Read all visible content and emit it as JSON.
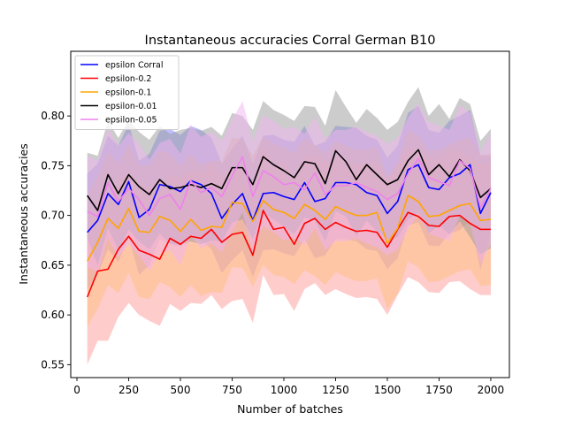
{
  "chart_data": {
    "type": "line",
    "title": "Instantaneous accuracies Corral German B10",
    "xlabel": "Number of batches",
    "ylabel": "Instantaneous accuracies",
    "xlim": [
      -30,
      2090
    ],
    "ylim": [
      0.537,
      0.865
    ],
    "xticks": [
      0,
      250,
      500,
      750,
      1000,
      1250,
      1500,
      1750,
      2000
    ],
    "yticks": [
      0.55,
      0.6,
      0.65,
      0.7,
      0.75,
      0.8
    ],
    "xtick_labels": [
      "0",
      "250",
      "500",
      "750",
      "1000",
      "1250",
      "1500",
      "1750",
      "2000"
    ],
    "ytick_labels": [
      "0.55",
      "0.60",
      "0.65",
      "0.70",
      "0.75",
      "0.80"
    ],
    "grid": false,
    "legend_position": "top-left",
    "x": [
      50,
      100,
      150,
      200,
      250,
      300,
      350,
      400,
      450,
      500,
      550,
      600,
      650,
      700,
      750,
      800,
      850,
      900,
      950,
      1000,
      1050,
      1100,
      1150,
      1200,
      1250,
      1300,
      1350,
      1400,
      1450,
      1500,
      1550,
      1600,
      1650,
      1700,
      1750,
      1800,
      1850,
      1900,
      1950,
      2000
    ],
    "series": [
      {
        "name": "epsilon Corral",
        "color": "#0000ff",
        "band_color": "#8080ff",
        "values": [
          0.683,
          0.695,
          0.722,
          0.711,
          0.734,
          0.698,
          0.706,
          0.731,
          0.729,
          0.724,
          0.735,
          0.731,
          0.722,
          0.697,
          0.711,
          0.722,
          0.695,
          0.722,
          0.723,
          0.719,
          0.716,
          0.733,
          0.714,
          0.717,
          0.733,
          0.733,
          0.731,
          0.723,
          0.72,
          0.702,
          0.714,
          0.746,
          0.751,
          0.728,
          0.726,
          0.738,
          0.742,
          0.751,
          0.702,
          0.723
        ],
        "upper": [
          0.742,
          0.752,
          0.78,
          0.77,
          0.792,
          0.755,
          0.762,
          0.785,
          0.787,
          0.781,
          0.79,
          0.786,
          0.778,
          0.752,
          0.767,
          0.78,
          0.752,
          0.78,
          0.781,
          0.776,
          0.774,
          0.79,
          0.77,
          0.774,
          0.79,
          0.789,
          0.788,
          0.78,
          0.776,
          0.758,
          0.77,
          0.803,
          0.81,
          0.786,
          0.783,
          0.795,
          0.8,
          0.806,
          0.76,
          0.76
        ],
        "lower": [
          0.625,
          0.64,
          0.666,
          0.653,
          0.678,
          0.64,
          0.65,
          0.676,
          0.671,
          0.668,
          0.68,
          0.675,
          0.666,
          0.642,
          0.655,
          0.665,
          0.638,
          0.665,
          0.666,
          0.662,
          0.659,
          0.676,
          0.657,
          0.66,
          0.676,
          0.676,
          0.674,
          0.666,
          0.664,
          0.646,
          0.657,
          0.69,
          0.693,
          0.67,
          0.669,
          0.682,
          0.685,
          0.695,
          0.645,
          0.686
        ]
      },
      {
        "name": "epsilon-0.2",
        "color": "#ff0000",
        "band_color": "#ff9999",
        "values": [
          0.618,
          0.644,
          0.646,
          0.666,
          0.679,
          0.665,
          0.661,
          0.656,
          0.677,
          0.671,
          0.679,
          0.677,
          0.686,
          0.673,
          0.681,
          0.683,
          0.66,
          0.705,
          0.686,
          0.688,
          0.671,
          0.692,
          0.697,
          0.686,
          0.693,
          0.688,
          0.684,
          0.685,
          0.683,
          0.668,
          0.686,
          0.703,
          0.699,
          0.69,
          0.689,
          0.699,
          0.7,
          0.692,
          0.686,
          0.686
        ],
        "upper": [
          0.686,
          0.715,
          0.718,
          0.735,
          0.745,
          0.73,
          0.728,
          0.723,
          0.742,
          0.738,
          0.745,
          0.743,
          0.752,
          0.74,
          0.748,
          0.75,
          0.728,
          0.77,
          0.752,
          0.754,
          0.738,
          0.758,
          0.762,
          0.752,
          0.76,
          0.755,
          0.751,
          0.752,
          0.75,
          0.736,
          0.752,
          0.768,
          0.765,
          0.757,
          0.756,
          0.765,
          0.766,
          0.758,
          0.752,
          0.752
        ],
        "lower": [
          0.55,
          0.574,
          0.574,
          0.598,
          0.612,
          0.6,
          0.594,
          0.589,
          0.611,
          0.604,
          0.612,
          0.611,
          0.62,
          0.606,
          0.614,
          0.616,
          0.592,
          0.64,
          0.62,
          0.621,
          0.604,
          0.626,
          0.632,
          0.62,
          0.626,
          0.621,
          0.617,
          0.618,
          0.616,
          0.6,
          0.62,
          0.638,
          0.633,
          0.623,
          0.622,
          0.633,
          0.634,
          0.626,
          0.62,
          0.62
        ]
      },
      {
        "name": "epsilon-0.1",
        "color": "#ffa500",
        "band_color": "#ffbf80",
        "values": [
          0.654,
          0.673,
          0.697,
          0.687,
          0.707,
          0.684,
          0.683,
          0.699,
          0.695,
          0.684,
          0.696,
          0.685,
          0.689,
          0.688,
          0.713,
          0.712,
          0.694,
          0.715,
          0.706,
          0.703,
          0.697,
          0.711,
          0.705,
          0.696,
          0.709,
          0.704,
          0.7,
          0.7,
          0.703,
          0.672,
          0.687,
          0.72,
          0.714,
          0.699,
          0.7,
          0.705,
          0.71,
          0.712,
          0.695,
          0.696
        ],
        "upper": [
          0.72,
          0.74,
          0.764,
          0.752,
          0.772,
          0.75,
          0.75,
          0.765,
          0.762,
          0.75,
          0.762,
          0.751,
          0.755,
          0.754,
          0.778,
          0.777,
          0.76,
          0.78,
          0.772,
          0.768,
          0.763,
          0.777,
          0.771,
          0.762,
          0.775,
          0.77,
          0.766,
          0.766,
          0.769,
          0.738,
          0.753,
          0.786,
          0.78,
          0.765,
          0.766,
          0.771,
          0.776,
          0.778,
          0.761,
          0.762
        ],
        "lower": [
          0.588,
          0.606,
          0.63,
          0.622,
          0.642,
          0.618,
          0.616,
          0.633,
          0.628,
          0.618,
          0.63,
          0.619,
          0.623,
          0.622,
          0.648,
          0.647,
          0.628,
          0.65,
          0.64,
          0.638,
          0.631,
          0.645,
          0.639,
          0.63,
          0.643,
          0.638,
          0.634,
          0.634,
          0.637,
          0.606,
          0.621,
          0.654,
          0.648,
          0.633,
          0.634,
          0.639,
          0.644,
          0.646,
          0.629,
          0.63
        ]
      },
      {
        "name": "epsilon-0.01",
        "color": "#000000",
        "band_color": "#999999",
        "values": [
          0.72,
          0.705,
          0.741,
          0.722,
          0.741,
          0.729,
          0.721,
          0.736,
          0.727,
          0.728,
          0.731,
          0.728,
          0.732,
          0.727,
          0.748,
          0.748,
          0.731,
          0.759,
          0.751,
          0.745,
          0.738,
          0.754,
          0.752,
          0.732,
          0.765,
          0.754,
          0.736,
          0.751,
          0.741,
          0.731,
          0.736,
          0.755,
          0.766,
          0.741,
          0.751,
          0.739,
          0.756,
          0.745,
          0.718,
          0.727
        ],
        "upper": [
          0.763,
          0.76,
          0.795,
          0.778,
          0.796,
          0.784,
          0.776,
          0.79,
          0.782,
          0.786,
          0.788,
          0.785,
          0.789,
          0.78,
          0.803,
          0.8,
          0.786,
          0.815,
          0.806,
          0.801,
          0.795,
          0.81,
          0.809,
          0.79,
          0.826,
          0.809,
          0.793,
          0.807,
          0.798,
          0.786,
          0.794,
          0.814,
          0.829,
          0.8,
          0.812,
          0.797,
          0.818,
          0.812,
          0.775,
          0.787
        ],
        "lower": [
          0.677,
          0.65,
          0.687,
          0.666,
          0.686,
          0.674,
          0.666,
          0.682,
          0.672,
          0.67,
          0.674,
          0.671,
          0.675,
          0.674,
          0.693,
          0.696,
          0.676,
          0.703,
          0.696,
          0.689,
          0.681,
          0.698,
          0.695,
          0.674,
          0.704,
          0.699,
          0.679,
          0.695,
          0.684,
          0.676,
          0.678,
          0.696,
          0.703,
          0.682,
          0.69,
          0.681,
          0.694,
          0.678,
          0.661,
          0.667
        ]
      },
      {
        "name": "epsilon-0.05",
        "color": "#ee82ee",
        "band_color": "#f2b3f2",
        "values": [
          0.704,
          0.699,
          0.733,
          0.714,
          0.727,
          0.716,
          0.7,
          0.717,
          0.721,
          0.706,
          0.735,
          0.723,
          0.728,
          0.719,
          0.74,
          0.759,
          0.719,
          0.745,
          0.739,
          0.731,
          0.733,
          0.726,
          0.743,
          0.721,
          0.73,
          0.73,
          0.733,
          0.728,
          0.724,
          0.716,
          0.722,
          0.742,
          0.757,
          0.738,
          0.734,
          0.73,
          0.755,
          0.747,
          0.708,
          0.727
        ],
        "upper": [
          0.76,
          0.755,
          0.788,
          0.77,
          0.783,
          0.772,
          0.756,
          0.773,
          0.777,
          0.762,
          0.791,
          0.779,
          0.784,
          0.775,
          0.796,
          0.815,
          0.775,
          0.801,
          0.795,
          0.787,
          0.789,
          0.782,
          0.799,
          0.777,
          0.786,
          0.786,
          0.789,
          0.784,
          0.78,
          0.772,
          0.778,
          0.798,
          0.813,
          0.794,
          0.79,
          0.786,
          0.811,
          0.803,
          0.764,
          0.783
        ],
        "lower": [
          0.648,
          0.643,
          0.677,
          0.658,
          0.671,
          0.66,
          0.644,
          0.661,
          0.665,
          0.65,
          0.679,
          0.667,
          0.672,
          0.663,
          0.684,
          0.703,
          0.663,
          0.689,
          0.683,
          0.675,
          0.677,
          0.67,
          0.687,
          0.665,
          0.674,
          0.674,
          0.677,
          0.672,
          0.668,
          0.66,
          0.666,
          0.686,
          0.701,
          0.682,
          0.678,
          0.674,
          0.699,
          0.691,
          0.652,
          0.671
        ]
      }
    ]
  }
}
